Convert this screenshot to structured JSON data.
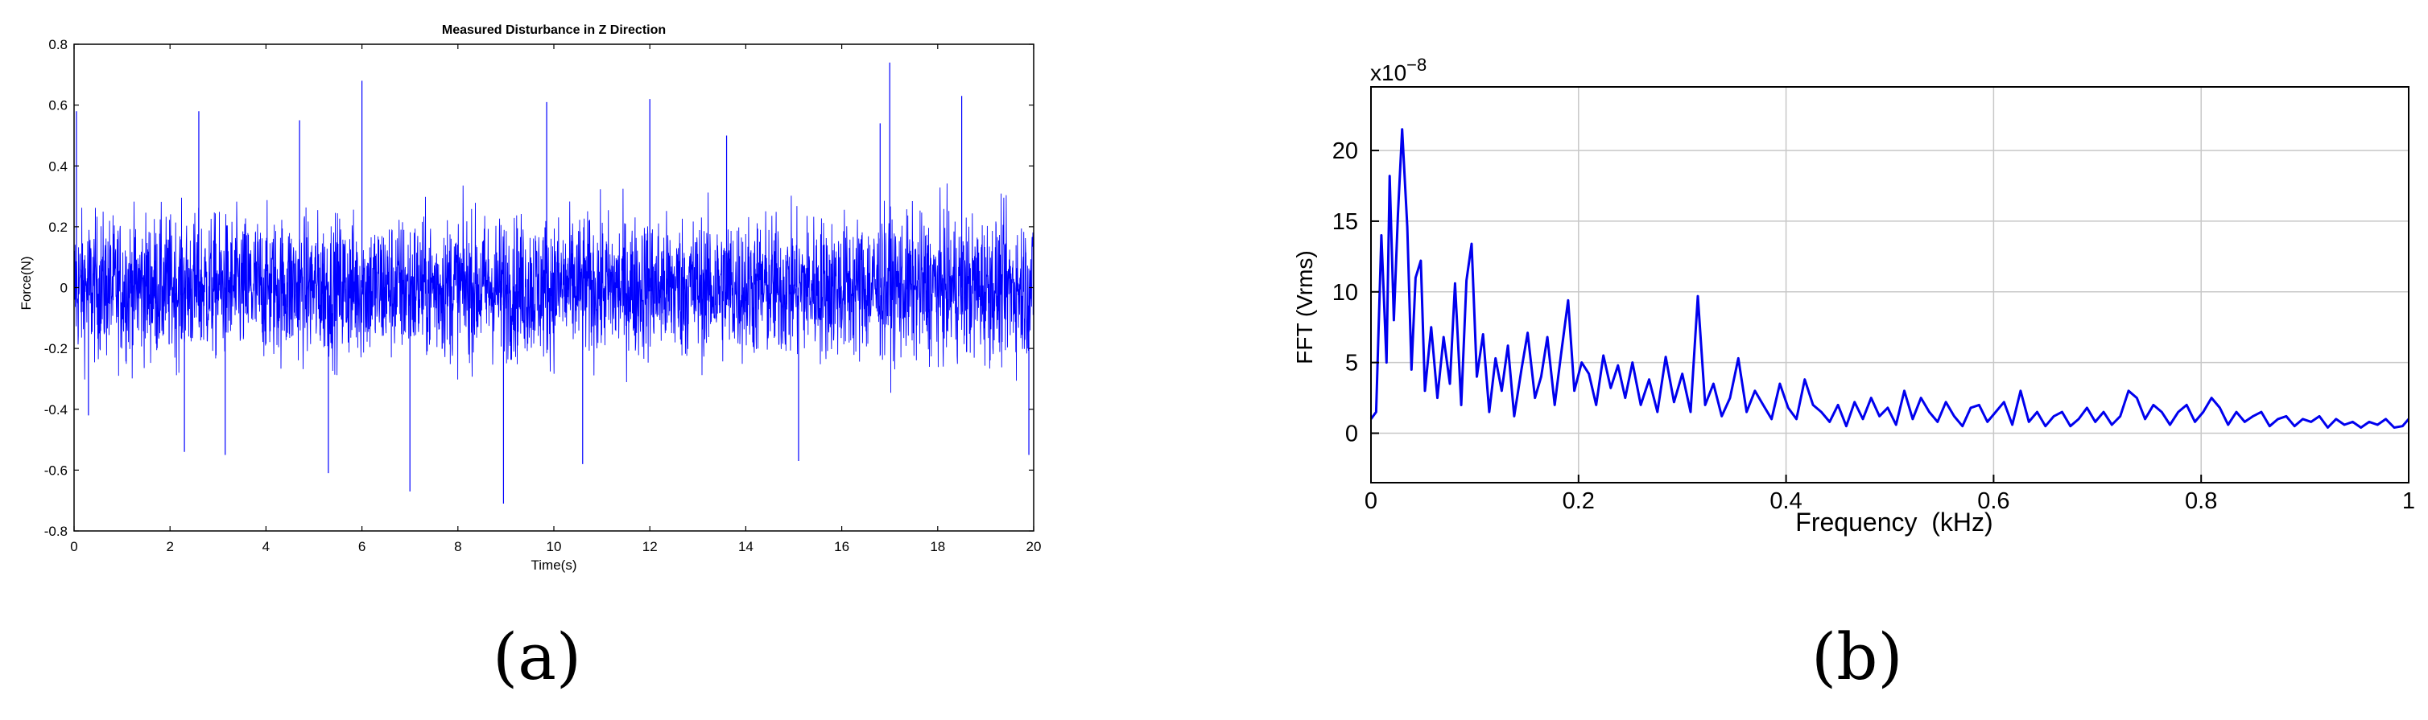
{
  "panel_labels": {
    "a": "(a)",
    "b": "(b)"
  },
  "chart_data": [
    {
      "type": "line",
      "title": "Measured Disturbance in Z Direction",
      "xlabel": "Time(s)",
      "ylabel": "Force(N)",
      "xlim": [
        0,
        20
      ],
      "ylim": [
        -0.8,
        0.8
      ],
      "xticks": [
        "0",
        "2",
        "4",
        "6",
        "8",
        "10",
        "12",
        "14",
        "16",
        "18",
        "20"
      ],
      "yticks": [
        "-0.8",
        "-0.6",
        "-0.4",
        "-0.2",
        "0",
        "0.2",
        "0.4",
        "0.6",
        "0.8"
      ],
      "grid": false,
      "color": "#0000ff",
      "signal": {
        "kind": "noise",
        "typical_amplitude": 0.3,
        "peak_min": -0.71,
        "peak_max": 0.74
      },
      "peaks": [
        {
          "x": 6.0,
          "y": 0.68
        },
        {
          "x": 17.0,
          "y": 0.74
        },
        {
          "x": 8.95,
          "y": -0.71
        },
        {
          "x": 7.0,
          "y": -0.67
        },
        {
          "x": 12.0,
          "y": 0.62
        },
        {
          "x": 18.5,
          "y": 0.63
        },
        {
          "x": 9.85,
          "y": 0.61
        },
        {
          "x": 5.3,
          "y": -0.61
        },
        {
          "x": 4.7,
          "y": 0.55
        },
        {
          "x": 2.6,
          "y": 0.58
        },
        {
          "x": 0.05,
          "y": 0.58
        },
        {
          "x": 15.1,
          "y": -0.57
        },
        {
          "x": 19.9,
          "y": -0.55
        },
        {
          "x": 2.3,
          "y": -0.54
        },
        {
          "x": 3.15,
          "y": -0.55
        },
        {
          "x": 16.8,
          "y": 0.54
        },
        {
          "x": 13.6,
          "y": 0.5
        },
        {
          "x": 10.6,
          "y": -0.58
        },
        {
          "x": 0.3,
          "y": -0.42
        }
      ]
    },
    {
      "type": "line",
      "title": "",
      "xlabel": "Frequency  (kHz)",
      "ylabel": "FFT (Vrms)",
      "scale_label": "x10",
      "scale_exponent": "−8",
      "xlim": [
        0,
        1
      ],
      "ylim": [
        -3.5,
        24.5
      ],
      "xticks": [
        "0",
        "0.2",
        "0.4",
        "0.6",
        "0.8",
        "1"
      ],
      "yticks": [
        "0",
        "5",
        "10",
        "15",
        "20"
      ],
      "grid": true,
      "color": "#0000ee",
      "series": [
        {
          "x": [
            0,
            0.005,
            0.01,
            0.015,
            0.018,
            0.022,
            0.026,
            0.03,
            0.035,
            0.039,
            0.043,
            0.048,
            0.052,
            0.058,
            0.064,
            0.07,
            0.076,
            0.081,
            0.087,
            0.092,
            0.097,
            0.102,
            0.108,
            0.114,
            0.12,
            0.126,
            0.132,
            0.138,
            0.145,
            0.151,
            0.158,
            0.164,
            0.17,
            0.177,
            0.183,
            0.19,
            0.196,
            0.203,
            0.21,
            0.217,
            0.224,
            0.231,
            0.238,
            0.245,
            0.252,
            0.26,
            0.268,
            0.276,
            0.284,
            0.292,
            0.3,
            0.308,
            0.315,
            0.322,
            0.33,
            0.338,
            0.346,
            0.354,
            0.362,
            0.37,
            0.378,
            0.386,
            0.394,
            0.402,
            0.41,
            0.418,
            0.426,
            0.434,
            0.442,
            0.45,
            0.458,
            0.466,
            0.474,
            0.482,
            0.49,
            0.498,
            0.506,
            0.514,
            0.522,
            0.53,
            0.538,
            0.546,
            0.554,
            0.562,
            0.57,
            0.578,
            0.586,
            0.594,
            0.602,
            0.61,
            0.618,
            0.626,
            0.634,
            0.642,
            0.65,
            0.658,
            0.666,
            0.674,
            0.682,
            0.69,
            0.698,
            0.706,
            0.714,
            0.722,
            0.73,
            0.738,
            0.746,
            0.754,
            0.762,
            0.77,
            0.778,
            0.786,
            0.794,
            0.802,
            0.81,
            0.818,
            0.826,
            0.834,
            0.842,
            0.85,
            0.858,
            0.866,
            0.874,
            0.882,
            0.89,
            0.898,
            0.906,
            0.914,
            0.922,
            0.93,
            0.938,
            0.946,
            0.954,
            0.962,
            0.97,
            0.978,
            0.986,
            0.994,
            1.0
          ],
          "y": [
            1.0,
            1.5,
            14.0,
            5.0,
            18.2,
            8.0,
            15.5,
            21.5,
            14.6,
            4.5,
            11.0,
            12.2,
            3.0,
            7.5,
            2.5,
            6.8,
            3.5,
            10.6,
            2.0,
            10.8,
            13.4,
            4.0,
            7.0,
            1.5,
            5.3,
            3.0,
            6.2,
            1.2,
            4.5,
            7.1,
            2.5,
            4.0,
            6.8,
            2.0,
            5.5,
            9.4,
            3.0,
            5.0,
            4.2,
            2.0,
            5.5,
            3.2,
            4.8,
            2.5,
            5.0,
            2.0,
            3.8,
            1.5,
            5.4,
            2.2,
            4.2,
            1.5,
            9.7,
            2.0,
            3.5,
            1.2,
            2.5,
            5.3,
            1.5,
            3.0,
            2.0,
            1.0,
            3.5,
            1.8,
            1.0,
            3.8,
            2.0,
            1.5,
            0.8,
            2.0,
            0.5,
            2.2,
            1.0,
            2.5,
            1.2,
            1.8,
            0.6,
            3.0,
            1.0,
            2.5,
            1.5,
            0.8,
            2.2,
            1.2,
            0.5,
            1.8,
            2.0,
            0.8,
            1.5,
            2.2,
            0.6,
            3.0,
            0.8,
            1.5,
            0.5,
            1.2,
            1.5,
            0.5,
            1.0,
            1.8,
            0.8,
            1.5,
            0.6,
            1.2,
            3.0,
            2.5,
            1.0,
            2.0,
            1.5,
            0.6,
            1.5,
            2.0,
            0.8,
            1.5,
            2.5,
            1.8,
            0.6,
            1.5,
            0.8,
            1.2,
            1.5,
            0.5,
            1.0,
            1.2,
            0.5,
            1.0,
            0.8,
            1.2,
            0.4,
            1.0,
            0.6,
            0.8,
            0.4,
            0.8,
            0.6,
            1.0,
            0.4,
            0.5,
            1.0
          ]
        }
      ]
    }
  ]
}
